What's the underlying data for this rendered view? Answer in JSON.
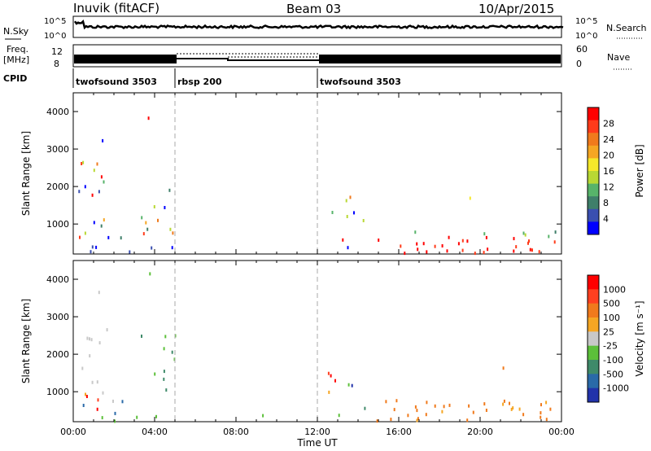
{
  "header": {
    "station": "Inuvik (fitACF)",
    "beam": "Beam 03",
    "date": "10/Apr/2015"
  },
  "nsky_panel": {
    "left_label": "N.Sky",
    "right_label": "N.Search",
    "left_ticks": [
      "10^5",
      "10^0"
    ],
    "right_ticks": [
      "10^5",
      "10^0"
    ]
  },
  "freq_panel": {
    "left_label_1": "Freq.",
    "left_label_2": "[MHz]",
    "left_ticks": [
      "12",
      "8"
    ],
    "right_label": "Nave",
    "right_ticks": [
      "60",
      "0"
    ]
  },
  "cpid": {
    "label": "CPID",
    "segments": [
      {
        "name": "twofsound 3503",
        "start_hour": 0,
        "end_hour": 5
      },
      {
        "name": "rbsp 200",
        "start_hour": 5,
        "end_hour": 12
      },
      {
        "name": "twofsound 3503",
        "start_hour": 12,
        "end_hour": 24
      }
    ]
  },
  "chart_data": [
    {
      "type": "heatmap",
      "name": "power",
      "ylabel": "Slant Range [km]",
      "y_ticks": [
        1000,
        2000,
        3000,
        4000
      ],
      "ylim": [
        200,
        4500
      ],
      "colorbar_label": "Power [dB]",
      "colorbar_ticks": [
        "28",
        "24",
        "20",
        "16",
        "12",
        "8",
        "4"
      ],
      "colors": [
        "#0000ff",
        "#3a4fb0",
        "#3f7f6a",
        "#57b36a",
        "#b8d834",
        "#f5e82a",
        "#f5a623",
        "#f07a1c",
        "#ff3b1a",
        "#ff0000"
      ]
    },
    {
      "type": "heatmap",
      "name": "velocity",
      "ylabel": "Slant Range [km]",
      "y_ticks": [
        1000,
        2000,
        3000,
        4000
      ],
      "ylim": [
        200,
        4500
      ],
      "colorbar_label": "Velocity [m s⁻¹]",
      "colorbar_ticks": [
        "1000",
        "500",
        "100",
        "25",
        "-25",
        "-100",
        "-500",
        "-1000"
      ],
      "colors": [
        "#2233aa",
        "#2a6aa8",
        "#3f8a6a",
        "#5cc03a",
        "#c8c8c8",
        "#f5a623",
        "#f07a1c",
        "#ff4020",
        "#ff0000"
      ]
    }
  ],
  "x_axis": {
    "label": "Time UT",
    "ticks": [
      "00:00",
      "04:00",
      "08:00",
      "12:00",
      "16:00",
      "20:00",
      "00:00"
    ]
  }
}
